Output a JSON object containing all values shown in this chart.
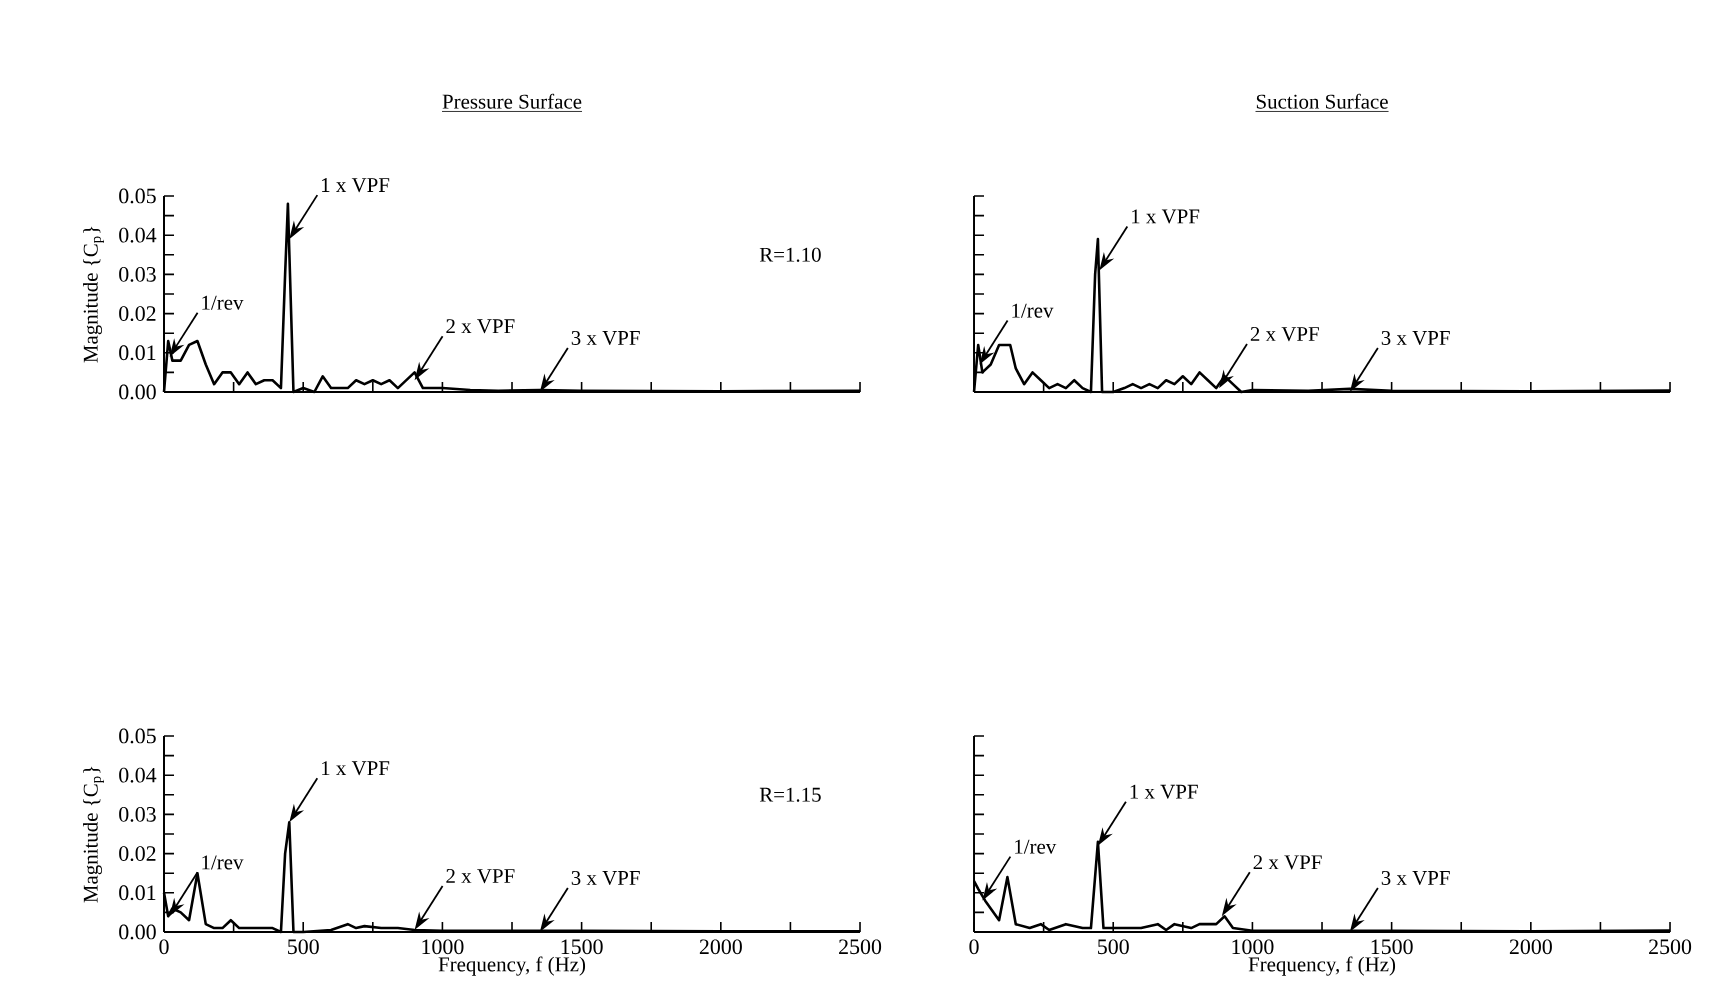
{
  "chart_data": [
    {
      "type": "line",
      "title": "Pressure Surface",
      "ylabel": "Magnitude {C$_{p}$}",
      "tick_labels": "y",
      "color": "#000000",
      "x": [
        0,
        15,
        30,
        60,
        90,
        120,
        150,
        180,
        210,
        240,
        270,
        300,
        330,
        360,
        390,
        420,
        435,
        445,
        465,
        500,
        540,
        570,
        600,
        660,
        690,
        720,
        750,
        780,
        810,
        840,
        900,
        930,
        1000,
        1100,
        1200,
        1350,
        1500,
        2000,
        2500
      ],
      "values": [
        0.0,
        0.013,
        0.008,
        0.008,
        0.012,
        0.013,
        0.007,
        0.002,
        0.005,
        0.005,
        0.002,
        0.005,
        0.002,
        0.003,
        0.003,
        0.001,
        0.03,
        0.048,
        0.0,
        0.001,
        0.0,
        0.004,
        0.001,
        0.001,
        0.003,
        0.002,
        0.003,
        0.002,
        0.003,
        0.001,
        0.005,
        0.001,
        0.001,
        0.0005,
        0.0003,
        0.0005,
        0.0003,
        0.0002,
        0.0003
      ],
      "xlim": [
        0,
        2500
      ],
      "ylim": [
        0,
        0.05
      ],
      "xticks": [
        {
          "value": 0,
          "label": null
        },
        {
          "value": 250,
          "label": null
        },
        {
          "value": 500,
          "label": null
        },
        {
          "value": 750,
          "label": null
        },
        {
          "value": 1000,
          "label": null
        },
        {
          "value": 1250,
          "label": null
        },
        {
          "value": 1500,
          "label": null
        },
        {
          "value": 1750,
          "label": null
        },
        {
          "value": 2000,
          "label": null
        },
        {
          "value": 2250,
          "label": null
        },
        {
          "value": 2500,
          "label": null
        }
      ],
      "yticks": [
        {
          "value": 0,
          "label": "0.00"
        },
        {
          "value": 0.005,
          "label": null
        },
        {
          "value": 0.01,
          "label": "0.01"
        },
        {
          "value": 0.015,
          "label": null
        },
        {
          "value": 0.02,
          "label": "0.02"
        },
        {
          "value": 0.025,
          "label": null
        },
        {
          "value": 0.03,
          "label": "0.03"
        },
        {
          "value": 0.035,
          "label": null
        },
        {
          "value": 0.04,
          "label": "0.04"
        },
        {
          "value": 0.045,
          "label": null
        },
        {
          "value": 0.05,
          "label": "0.05"
        }
      ],
      "annotations": [
        {
          "text": "1/rev",
          "x": 20,
          "y": 0.009
        },
        {
          "text": "1 x VPF",
          "x": 450,
          "y": 0.039
        },
        {
          "text": "2 x VPF",
          "x": 900,
          "y": 0.003
        },
        {
          "text": "3 x VPF",
          "x": 1350,
          "y": 0.0
        },
        "R=1.10"
      ]
    },
    {
      "type": "line",
      "title": "Suction Surface",
      "tick_labels": false,
      "color": "#000000",
      "x": [
        0,
        15,
        30,
        60,
        90,
        130,
        150,
        180,
        210,
        240,
        270,
        300,
        330,
        360,
        390,
        420,
        435,
        445,
        460,
        500,
        540,
        570,
        600,
        630,
        660,
        690,
        720,
        750,
        780,
        810,
        840,
        870,
        900,
        930,
        960,
        1000,
        1200,
        1350,
        1500,
        2000,
        2500
      ],
      "values": [
        0.0,
        0.012,
        0.005,
        0.007,
        0.012,
        0.012,
        0.006,
        0.002,
        0.005,
        0.003,
        0.001,
        0.002,
        0.001,
        0.003,
        0.001,
        0.0,
        0.03,
        0.039,
        0.0,
        0.0,
        0.001,
        0.002,
        0.001,
        0.002,
        0.001,
        0.003,
        0.002,
        0.004,
        0.002,
        0.005,
        0.003,
        0.001,
        0.004,
        0.002,
        0.0,
        0.0005,
        0.0003,
        0.0008,
        0.0003,
        0.0002,
        0.0004
      ],
      "xlim": [
        0,
        2500
      ],
      "ylim": [
        0,
        0.05
      ],
      "xticks": [
        {
          "value": 0,
          "label": null
        },
        {
          "value": 250,
          "label": null
        },
        {
          "value": 500,
          "label": null
        },
        {
          "value": 750,
          "label": null
        },
        {
          "value": 1000,
          "label": null
        },
        {
          "value": 1250,
          "label": null
        },
        {
          "value": 1500,
          "label": null
        },
        {
          "value": 1750,
          "label": null
        },
        {
          "value": 2000,
          "label": null
        },
        {
          "value": 2250,
          "label": null
        },
        {
          "value": 2500,
          "label": null
        }
      ],
      "yticks": [
        {
          "value": 0,
          "label": null
        },
        {
          "value": 0.005,
          "label": null
        },
        {
          "value": 0.01,
          "label": null
        },
        {
          "value": 0.015,
          "label": null
        },
        {
          "value": 0.02,
          "label": null
        },
        {
          "value": 0.025,
          "label": null
        },
        {
          "value": 0.03,
          "label": null
        },
        {
          "value": 0.035,
          "label": null
        },
        {
          "value": 0.04,
          "label": null
        },
        {
          "value": 0.045,
          "label": null
        },
        {
          "value": 0.05,
          "label": null
        }
      ],
      "annotations": [
        {
          "text": "1/rev",
          "x": 20,
          "y": 0.007
        },
        {
          "text": "1 x VPF",
          "x": 450,
          "y": 0.031
        },
        {
          "text": "2 x VPF",
          "x": 880,
          "y": 0.001
        },
        {
          "text": "3 x VPF",
          "x": 1350,
          "y": 0.0
        }
      ]
    },
    {
      "type": "line",
      "xlabel": "Frequency, f (Hz)",
      "ylabel": "Magnitude {C$_{p}$}",
      "color": "#000000",
      "x": [
        0,
        15,
        30,
        60,
        90,
        120,
        150,
        180,
        210,
        240,
        270,
        300,
        330,
        360,
        390,
        420,
        435,
        450,
        465,
        500,
        600,
        660,
        690,
        720,
        780,
        840,
        900,
        1000,
        1500,
        2000,
        2500
      ],
      "values": [
        0.01,
        0.004,
        0.006,
        0.005,
        0.003,
        0.015,
        0.002,
        0.001,
        0.001,
        0.003,
        0.001,
        0.001,
        0.001,
        0.001,
        0.001,
        0.0,
        0.02,
        0.028,
        0.0,
        0.0,
        0.0005,
        0.002,
        0.001,
        0.0015,
        0.001,
        0.001,
        0.0005,
        0.0003,
        0.0003,
        0.0002,
        0.0002
      ],
      "xlim": [
        0,
        2500
      ],
      "ylim": [
        0,
        0.05
      ],
      "xticks": [
        0,
        {
          "value": 250,
          "label": null
        },
        500,
        {
          "value": 750,
          "label": null
        },
        1000,
        {
          "value": 1250,
          "label": null
        },
        1500,
        {
          "value": 1750,
          "label": null
        },
        2000,
        {
          "value": 2250,
          "label": null
        },
        2500
      ],
      "yticks": [
        {
          "value": 0,
          "label": "0.00"
        },
        {
          "value": 0.005,
          "label": null
        },
        {
          "value": 0.01,
          "label": "0.01"
        },
        {
          "value": 0.015,
          "label": null
        },
        {
          "value": 0.02,
          "label": "0.02"
        },
        {
          "value": 0.025,
          "label": null
        },
        {
          "value": 0.03,
          "label": "0.03"
        },
        {
          "value": 0.035,
          "label": null
        },
        {
          "value": 0.04,
          "label": "0.04"
        },
        {
          "value": 0.045,
          "label": null
        },
        {
          "value": 0.05,
          "label": "0.05"
        }
      ],
      "annotations": [
        {
          "text": "1/rev",
          "x": 20,
          "y": 0.004
        },
        {
          "text": "1 x VPF",
          "x": 450,
          "y": 0.028
        },
        {
          "text": "2 x VPF",
          "x": 900,
          "y": 0.0005
        },
        {
          "text": "3 x VPF",
          "x": 1350,
          "y": 0.0
        },
        "R=1.15"
      ]
    },
    {
      "type": "line",
      "xlabel": "Frequency, f (Hz)",
      "tick_labels": "x",
      "color": "#000000",
      "x": [
        0,
        15,
        40,
        90,
        120,
        150,
        200,
        240,
        270,
        330,
        390,
        420,
        445,
        465,
        500,
        600,
        660,
        690,
        720,
        780,
        810,
        870,
        900,
        930,
        1000,
        1500,
        2000,
        2500
      ],
      "values": [
        0.013,
        0.011,
        0.008,
        0.003,
        0.014,
        0.002,
        0.001,
        0.002,
        0.0005,
        0.002,
        0.001,
        0.001,
        0.023,
        0.001,
        0.001,
        0.001,
        0.002,
        0.0005,
        0.002,
        0.001,
        0.002,
        0.002,
        0.004,
        0.001,
        0.0003,
        0.0003,
        0.0002,
        0.0004
      ],
      "xlim": [
        0,
        2500
      ],
      "ylim": [
        0,
        0.05
      ],
      "xticks": [
        0,
        {
          "value": 250,
          "label": null
        },
        500,
        {
          "value": 750,
          "label": null
        },
        1000,
        {
          "value": 1250,
          "label": null
        },
        1500,
        {
          "value": 1750,
          "label": null
        },
        2000,
        {
          "value": 2250,
          "label": null
        },
        2500
      ],
      "yticks": [
        {
          "value": 0,
          "label": null
        },
        {
          "value": 0.005,
          "label": null
        },
        {
          "value": 0.01,
          "label": null
        },
        {
          "value": 0.015,
          "label": null
        },
        {
          "value": 0.02,
          "label": null
        },
        {
          "value": 0.025,
          "label": null
        },
        {
          "value": 0.03,
          "label": null
        },
        {
          "value": 0.035,
          "label": null
        },
        {
          "value": 0.04,
          "label": null
        },
        {
          "value": 0.045,
          "label": null
        },
        {
          "value": 0.05,
          "label": null
        }
      ],
      "annotations": [
        {
          "text": "1/rev",
          "x": 30,
          "y": 0.008
        },
        {
          "text": "1 x VPF",
          "x": 445,
          "y": 0.022
        },
        {
          "text": "2 x VPF",
          "x": 890,
          "y": 0.004
        },
        {
          "text": "3 x VPF",
          "x": 1350,
          "y": 0.0
        }
      ]
    }
  ]
}
